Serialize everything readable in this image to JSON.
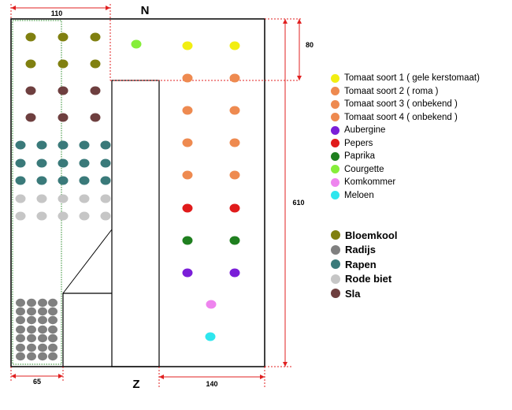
{
  "compass": {
    "north": "N",
    "south": "Z"
  },
  "dimensions": {
    "top_width": "110",
    "right_top": "80",
    "right_total": "610",
    "bottom_left": "65",
    "bottom_right": "140"
  },
  "colors": {
    "tomato_yellow": "#f2ee12",
    "tomato_orange": "#ee8a50",
    "aubergine": "#7a1ed8",
    "pepper": "#e01b1b",
    "paprika": "#1f7f1f",
    "courgette": "#86ee3a",
    "komkommer": "#ee84ee",
    "meloen": "#2ee6ee",
    "bloemkool": "#808010",
    "radijs": "#808080",
    "rapen": "#3a7a7a",
    "rode_biet": "#c6c6c6",
    "sla": "#6e3f3f"
  },
  "legend": {
    "vegetables": [
      {
        "label": "Tomaat soort 1  ( gele kerstomaat)",
        "color": "#f2ee12"
      },
      {
        "label": "Tomaat soort 2  ( roma )",
        "color": "#ee8a50"
      },
      {
        "label": "Tomaat soort 3 ( onbekend )",
        "color": "#ee8a50"
      },
      {
        "label": "Tomaat soort 4 ( onbekend )",
        "color": "#ee8a50"
      },
      {
        "label": "Aubergine",
        "color": "#7a1ed8"
      },
      {
        "label": "Pepers",
        "color": "#e01b1b"
      },
      {
        "label": "Paprika",
        "color": "#1f7f1f"
      },
      {
        "label": "Courgette",
        "color": "#86ee3a"
      },
      {
        "label": "Komkommer",
        "color": "#ee84ee"
      },
      {
        "label": "Meloen",
        "color": "#2ee6ee"
      }
    ],
    "crops": [
      {
        "label": "Bloemkool",
        "color": "#808010"
      },
      {
        "label": "Radijs",
        "color": "#808080"
      },
      {
        "label": "Rapen",
        "color": "#3a7a7a"
      },
      {
        "label": "Rode biet",
        "color": "#c6c6c6"
      },
      {
        "label": "Sla",
        "color": "#6e3f3f"
      }
    ]
  }
}
